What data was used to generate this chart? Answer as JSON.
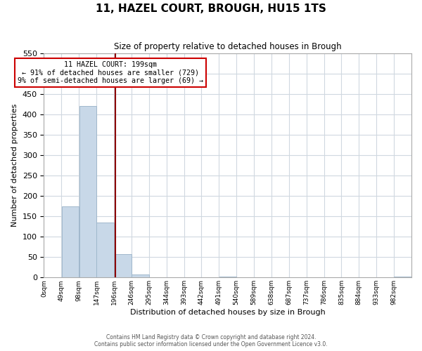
{
  "title": "11, HAZEL COURT, BROUGH, HU15 1TS",
  "subtitle": "Size of property relative to detached houses in Brough",
  "xlabel": "Distribution of detached houses by size in Brough",
  "ylabel": "Number of detached properties",
  "bin_labels_display": [
    "0sqm",
    "49sqm",
    "98sqm",
    "147sqm",
    "196sqm",
    "246sqm",
    "295sqm",
    "344sqm",
    "393sqm",
    "442sqm",
    "491sqm",
    "540sqm",
    "589sqm",
    "638sqm",
    "687sqm",
    "737sqm",
    "786sqm",
    "835sqm",
    "884sqm",
    "933sqm",
    "982sqm"
  ],
  "bar_heights": [
    0,
    174,
    421,
    134,
    58,
    7,
    0,
    0,
    0,
    0,
    2,
    0,
    0,
    0,
    0,
    0,
    0,
    0,
    0,
    0,
    2
  ],
  "bar_color": "#c8d8e8",
  "bar_edgecolor": "#a0b8cc",
  "property_line_x": 199,
  "property_line_color": "#8b0000",
  "annotation_text_line1": "11 HAZEL COURT: 199sqm",
  "annotation_text_line2": "← 91% of detached houses are smaller (729)",
  "annotation_text_line3": "9% of semi-detached houses are larger (69) →",
  "annotation_box_color": "#ffffff",
  "annotation_box_edgecolor": "#cc0000",
  "ylim": [
    0,
    550
  ],
  "yticks": [
    0,
    50,
    100,
    150,
    200,
    250,
    300,
    350,
    400,
    450,
    500,
    550
  ],
  "footer_line1": "Contains HM Land Registry data © Crown copyright and database right 2024.",
  "footer_line2": "Contains public sector information licensed under the Open Government Licence v3.0.",
  "background_color": "#ffffff",
  "grid_color": "#d0d8e0"
}
